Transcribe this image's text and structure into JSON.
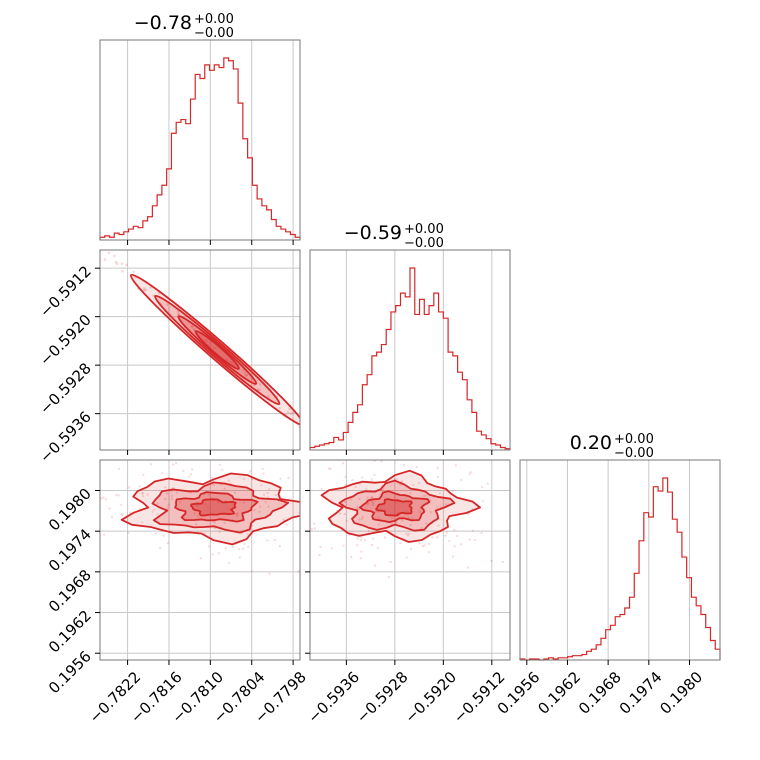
{
  "chart_data": {
    "type": "corner",
    "color": "#d62728",
    "parameters": [
      {
        "title": "−0.78",
        "title_sup": "+0.00",
        "title_sub": "−0.00",
        "range": [
          -0.7826,
          -0.7797
        ],
        "ticks": [
          "−0.7822",
          "−0.7816",
          "−0.7810",
          "−0.7804",
          "−0.7798"
        ],
        "tick_values": [
          -0.7822,
          -0.7816,
          -0.781,
          -0.7804,
          -0.7798
        ],
        "histogram": [
          2,
          3,
          2,
          5,
          4,
          6,
          8,
          10,
          9,
          14,
          17,
          25,
          33,
          40,
          52,
          78,
          86,
          88,
          85,
          103,
          121,
          118,
          128,
          124,
          128,
          126,
          133,
          131,
          125,
          100,
          74,
          60,
          40,
          30,
          25,
          22,
          15,
          10,
          8,
          6,
          4,
          2
        ]
      },
      {
        "title": "−0.59",
        "title_sup": "+0.00",
        "title_sub": "−0.00",
        "range": [
          -0.5942,
          -0.5909
        ],
        "ticks": [
          "−0.5936",
          "−0.5928",
          "−0.5920",
          "−0.5912"
        ],
        "tick_values": [
          -0.5936,
          -0.5928,
          -0.592,
          -0.5912
        ],
        "histogram": [
          2,
          3,
          4,
          5,
          6,
          10,
          8,
          14,
          22,
          30,
          36,
          52,
          60,
          75,
          78,
          84,
          96,
          110,
          115,
          125,
          122,
          145,
          108,
          120,
          108,
          115,
          125,
          110,
          105,
          78,
          75,
          62,
          56,
          40,
          30,
          15,
          12,
          9,
          5,
          4,
          2,
          1
        ]
      },
      {
        "title": "0.20",
        "title_sup": "+0.00",
        "title_sub": "−0.00",
        "range": [
          0.1955,
          0.19845
        ],
        "ticks": [
          "0.1956",
          "0.1962",
          "0.1968",
          "0.1974",
          "0.1980"
        ],
        "tick_values": [
          0.1956,
          0.1962,
          0.1968,
          0.1974,
          0.198
        ],
        "histogram": [
          1,
          0,
          1,
          1,
          0,
          1,
          2,
          1,
          2,
          2,
          3,
          4,
          4,
          5,
          8,
          10,
          14,
          20,
          28,
          32,
          40,
          42,
          48,
          58,
          80,
          110,
          136,
          132,
          160,
          156,
          168,
          155,
          130,
          118,
          95,
          76,
          58,
          50,
          42,
          30,
          18,
          10
        ]
      }
    ],
    "pairs": [
      {
        "x": 0,
        "y": 1,
        "orientation": "linear",
        "center": [
          -0.7809,
          -0.59255
        ],
        "slope": -0.86,
        "spread_along": 0.00125,
        "spread_across": 5e-05,
        "levels": [
          1.0,
          0.72,
          0.45,
          0.25
        ]
      },
      {
        "x": 0,
        "y": 2,
        "orientation": "blob",
        "center": [
          -0.78095,
          0.19775
        ],
        "spread_x": 0.0012,
        "spread_y": 0.00045,
        "levels": [
          1.0,
          0.72,
          0.45,
          0.25
        ]
      },
      {
        "x": 1,
        "y": 2,
        "orientation": "blob",
        "center": [
          -0.5928,
          0.19775
        ],
        "spread_x": 0.0011,
        "spread_y": 0.00045,
        "levels": [
          1.0,
          0.72,
          0.45,
          0.25
        ]
      }
    ]
  }
}
